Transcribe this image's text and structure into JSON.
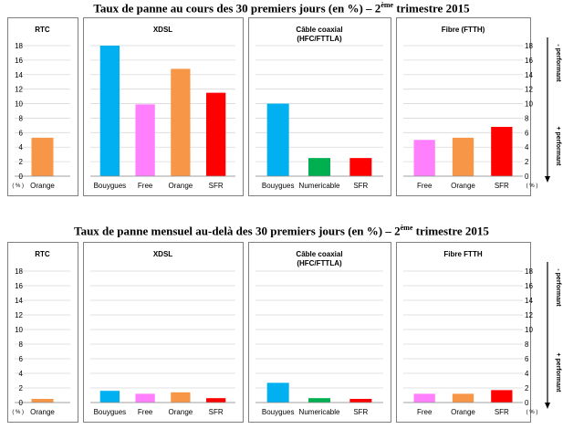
{
  "titles": {
    "top_main": "Taux de panne au cours des 30 premiers jours (en %) – 2",
    "top_sup": "ème",
    "top_tail": " trimestre 2015",
    "bottom_main": "Taux de panne mensuel  au-delà des 30 premiers jours (en %) – 2",
    "bottom_sup": "ème",
    "bottom_tail": " trimestre 2015"
  },
  "unit_label": "( % )",
  "performance": {
    "less": "- performant",
    "more": "+ performant"
  },
  "colors": {
    "Orange": "#f79646",
    "Bouygues": "#00b0f0",
    "Free": "#ff7fff",
    "SFR": "#ff0000",
    "Numericable": "#00b050"
  },
  "chart_data": [
    {
      "type": "bar",
      "title": "Taux de panne au cours des 30 premiers jours (en %) – 2ème trimestre 2015",
      "ylim": [
        0,
        18
      ],
      "yticks": [
        0,
        2,
        4,
        6,
        8,
        10,
        12,
        14,
        16,
        18
      ],
      "panels": [
        {
          "title": [
            "RTC"
          ],
          "categories": [
            "Orange"
          ],
          "values": [
            5.3
          ]
        },
        {
          "title": [
            "XDSL"
          ],
          "categories": [
            "Bouygues",
            "Free",
            "Orange",
            "SFR"
          ],
          "values": [
            18.0,
            9.9,
            14.8,
            11.5
          ]
        },
        {
          "title": [
            "Câble coaxial",
            "(HFC/FTTLA)"
          ],
          "categories": [
            "Bouygues",
            "Numericable",
            "SFR"
          ],
          "values": [
            10.0,
            2.5,
            2.5
          ]
        },
        {
          "title": [
            "Fibre (FTTH)"
          ],
          "categories": [
            "Free",
            "Orange",
            "SFR"
          ],
          "values": [
            5.0,
            5.3,
            6.8
          ]
        }
      ]
    },
    {
      "type": "bar",
      "title": "Taux de panne mensuel au-delà des 30 premiers jours (en %) – 2ème trimestre 2015",
      "ylim": [
        0,
        18
      ],
      "yticks": [
        0,
        2,
        4,
        6,
        8,
        10,
        12,
        14,
        16,
        18
      ],
      "panels": [
        {
          "title": [
            "RTC"
          ],
          "categories": [
            "Orange"
          ],
          "values": [
            0.5
          ]
        },
        {
          "title": [
            "XDSL"
          ],
          "categories": [
            "Bouygues",
            "Free",
            "Orange",
            "SFR"
          ],
          "values": [
            1.6,
            1.2,
            1.4,
            0.6
          ]
        },
        {
          "title": [
            "Câble coaxial",
            "(HFC/FTTLA)"
          ],
          "categories": [
            "Bouygues",
            "Numericable",
            "SFR"
          ],
          "values": [
            2.7,
            0.6,
            0.5
          ]
        },
        {
          "title": [
            "Fibre FTTH"
          ],
          "categories": [
            "Free",
            "Orange",
            "SFR"
          ],
          "values": [
            1.2,
            1.2,
            1.7
          ]
        }
      ]
    }
  ]
}
